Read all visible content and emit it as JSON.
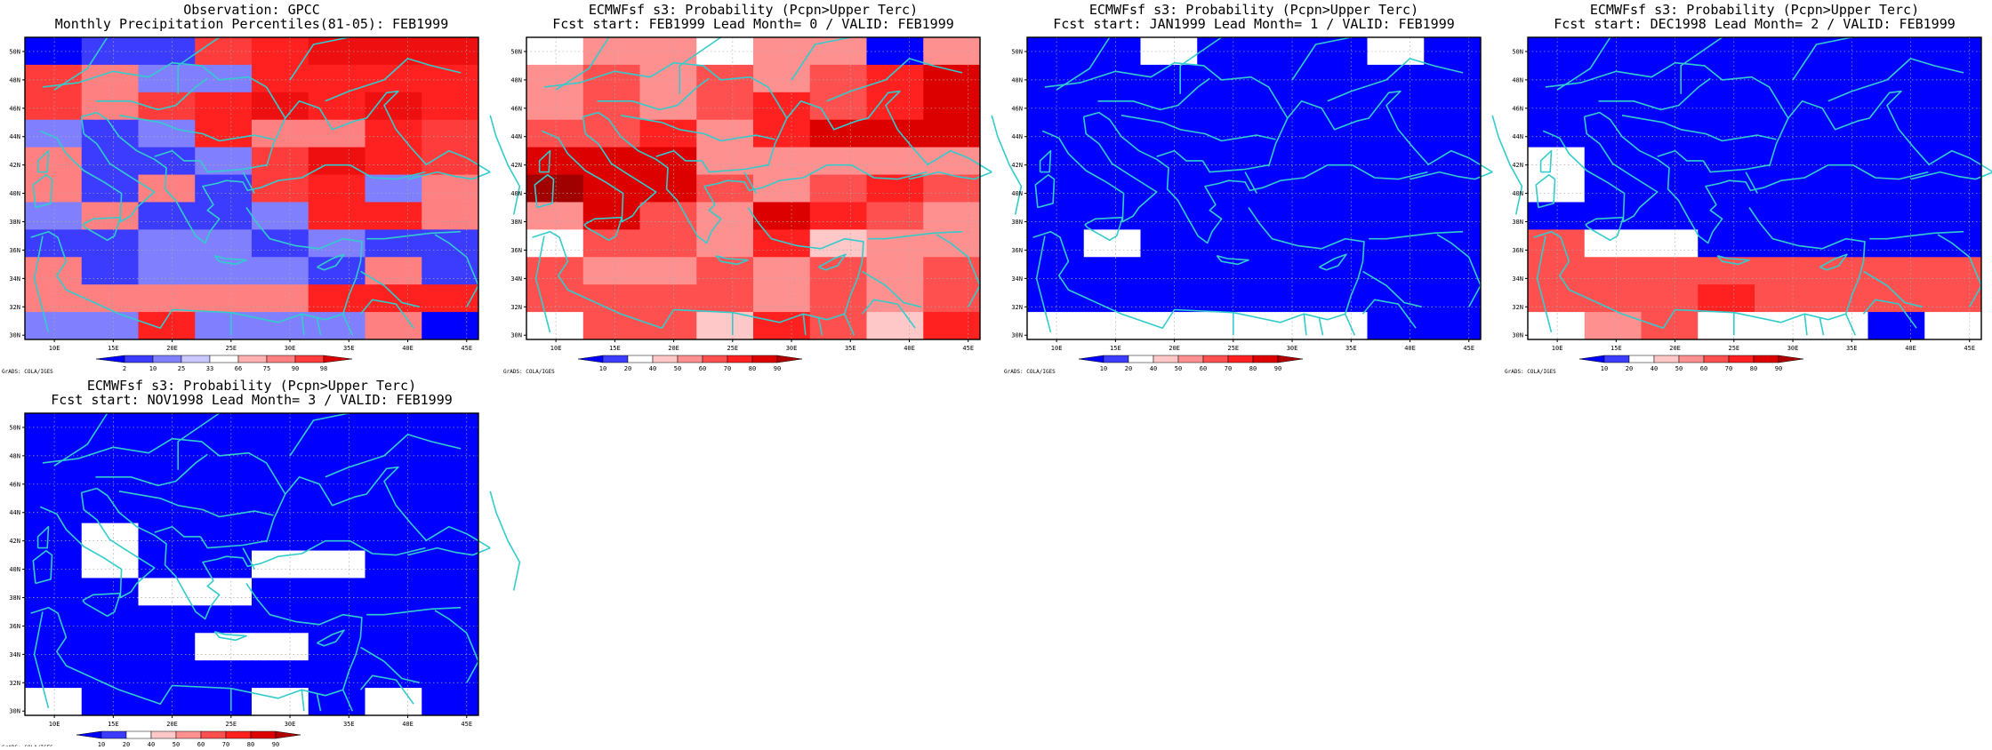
{
  "colors": {
    "coast": "#33cccc",
    "frame": "#000000",
    "grid": "#aaaaaa"
  },
  "lon_labels": [
    "10E",
    "15E",
    "20E",
    "25E",
    "30E",
    "35E",
    "40E",
    "45E"
  ],
  "lat_labels": [
    "30N",
    "32N",
    "34N",
    "36N",
    "38N",
    "40N",
    "42N",
    "44N",
    "46N",
    "48N",
    "50N"
  ],
  "credit": "GrADS: COLA/IGES",
  "panels": [
    {
      "title1": "Observation: GPCC",
      "title2": "Monthly Precipitation Percentiles(81-05): FEB1999",
      "legend_labels": [
        "2",
        "10",
        "25",
        "33",
        "66",
        "75",
        "90",
        "98"
      ],
      "legend_colors": [
        "#0000ff",
        "#3c3cff",
        "#8080ff",
        "#c8c8ff",
        "#ffffff",
        "#ffb0b0",
        "#ff8080",
        "#ff3c3c",
        "#dd0000"
      ],
      "grid": [
        "12256777",
        "54336666",
        "54567676",
        "32364465",
        "42235765",
        "42425634",
        "34223664",
        "22332322",
        "42333242",
        "44444666",
        "33633341"
      ],
      "palette": [
        "#ffffff",
        "#0000ff",
        "#3c3cff",
        "#8080ff",
        "#ff8080",
        "#ff3c3c",
        "#ff2020",
        "#ee1010"
      ]
    },
    {
      "title1": "ECMWFsf s3: Probability (Pcpn>Upper Terc)",
      "title2": "Fcst start: FEB1999   Lead Month= 0 / VALID: FEB1999",
      "legend_labels": [
        "10",
        "20",
        "40",
        "50",
        "60",
        "70",
        "80",
        "90"
      ],
      "legend_colors": [
        "#0000ff",
        "#3c3cff",
        "#ffffff",
        "#ffc8c8",
        "#ff9090",
        "#ff5050",
        "#ff2020",
        "#dd0000",
        "#b00000"
      ],
      "grid": [
        "04404414",
        "45454567",
        "45456567",
        "55646777",
        "77744444",
        "87754565",
        "47547654",
        "05546344",
        "54454545",
        "55554545",
        "05536536"
      ],
      "palette": [
        "#ffffff",
        "#0000ff",
        "#3c3cff",
        "#ffc8c8",
        "#ff9090",
        "#ff5050",
        "#ff2020",
        "#dd0000",
        "#a00000"
      ]
    },
    {
      "title1": "ECMWFsf s3: Probability (Pcpn>Upper Terc)",
      "title2": "Fcst start: JAN1999   Lead Month= 1 / VALID: FEB1999",
      "legend_labels": [
        "10",
        "20",
        "40",
        "50",
        "60",
        "70",
        "80",
        "90"
      ],
      "legend_colors": [
        "#0000ff",
        "#3c3cff",
        "#ffffff",
        "#ffc8c8",
        "#ff9090",
        "#ff5050",
        "#ff2020",
        "#dd0000",
        "#b00000"
      ],
      "grid": [
        "11011101",
        "11111111",
        "11111111",
        "11111111",
        "11111111",
        "11111111",
        "11111111",
        "10111111",
        "11111111",
        "11111111",
        "00000011"
      ],
      "palette": [
        "#ffffff",
        "#0000ff",
        "#3c3cff",
        "#ffc8c8",
        "#ff9090",
        "#ff5050",
        "#ff2020",
        "#dd0000",
        "#a00000"
      ]
    },
    {
      "title1": "ECMWFsf s3: Probability (Pcpn>Upper Terc)",
      "title2": "Fcst start: DEC1998   Lead Month= 2 / VALID: FEB1999",
      "legend_labels": [
        "10",
        "20",
        "40",
        "50",
        "60",
        "70",
        "80",
        "90"
      ],
      "legend_colors": [
        "#0000ff",
        "#3c3cff",
        "#ffffff",
        "#ffc8c8",
        "#ff9090",
        "#ff5050",
        "#ff2020",
        "#dd0000",
        "#b00000"
      ],
      "grid": [
        "11111111",
        "11111111",
        "11111111",
        "11111111",
        "01111111",
        "01111111",
        "11111111",
        "50011111",
        "55555555",
        "55565555",
        "04500010"
      ],
      "palette": [
        "#ffffff",
        "#0000ff",
        "#3c3cff",
        "#ffc8c8",
        "#ff9090",
        "#ff5050",
        "#ff2020",
        "#dd0000",
        "#a00000"
      ]
    },
    {
      "title1": "ECMWFsf s3: Probability (Pcpn>Upper Terc)",
      "title2": "Fcst start: NOV1998   Lead Month= 3 / VALID: FEB1999",
      "legend_labels": [
        "10",
        "20",
        "40",
        "50",
        "60",
        "70",
        "80",
        "90"
      ],
      "legend_colors": [
        "#0000ff",
        "#3c3cff",
        "#ffffff",
        "#ffc8c8",
        "#ff9090",
        "#ff5050",
        "#ff2020",
        "#dd0000",
        "#b00000"
      ],
      "grid": [
        "11111111",
        "11111111",
        "11111111",
        "11111111",
        "10111111",
        "10110011",
        "11001111",
        "11111111",
        "11100111",
        "11111111",
        "01110101"
      ],
      "palette": [
        "#ffffff",
        "#0000ff",
        "#3c3cff",
        "#ffc8c8",
        "#ff9090",
        "#ff5050",
        "#ff2020",
        "#dd0000",
        "#a00000"
      ]
    }
  ]
}
